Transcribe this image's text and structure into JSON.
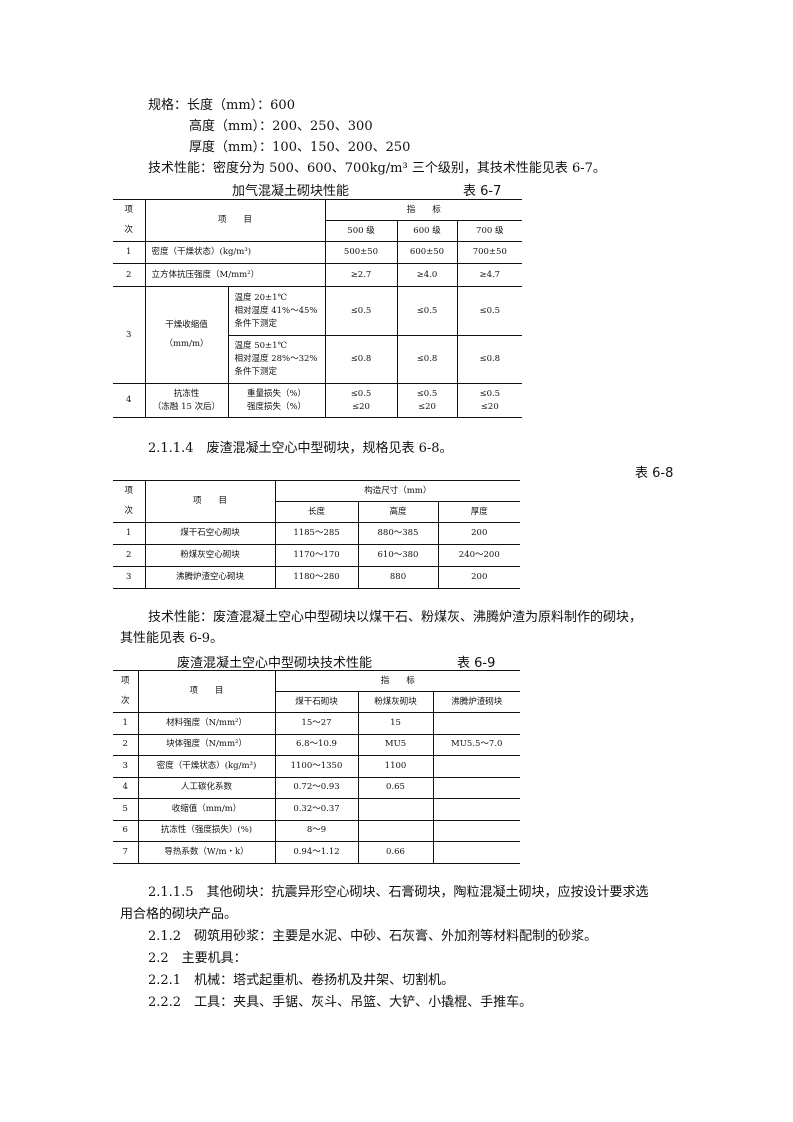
{
  "intro": {
    "spec_label": "规格：长度（mm）：600",
    "height": "高度（mm）：200、250、300",
    "thickness": "厚度（mm）：100、150、200、250",
    "tech": "技术性能：密度分为 500、600、700kg/m³ 三个级别，其技术性能见表 6-7。"
  },
  "table67": {
    "title": "加气混凝土砌块性能",
    "number": "表 6-7",
    "h_no1": "项",
    "h_no2": "次",
    "h_item": "项　　目",
    "h_index": "指　　标",
    "cols": [
      "500 级",
      "600 级",
      "700 级"
    ],
    "r1": {
      "no": "1",
      "item": "密度（干燥状态）(kg/m³)",
      "v": [
        "500±50",
        "600±50",
        "700±50"
      ]
    },
    "r2": {
      "no": "2",
      "item": "立方体抗压强度（M/mm²）",
      "v": [
        "≥2.7",
        "≥4.0",
        "≥4.7"
      ]
    },
    "r3": {
      "no": "3",
      "item1": "干燥收缩值",
      "item2": "（mm/m）",
      "a": {
        "c1": "温度 20±1℃",
        "c2": "相对湿度 41%～45%",
        "c3": "条件下测定",
        "v": [
          "≤0.5",
          "≤0.5",
          "≤0.5"
        ]
      },
      "b": {
        "c1": "温度 50±1℃",
        "c2": "相对湿度 28%～32%",
        "c3": "条件下测定",
        "v": [
          "≤0.8",
          "≤0.8",
          "≤0.8"
        ]
      }
    },
    "r4": {
      "no": "4",
      "item1": "抗冻性",
      "item2": "（冻融 15 次后）",
      "sub1": "重量损失（%）",
      "sub2": "强度损失（%）",
      "v1": [
        "≤0.5",
        "≤0.5",
        "≤0.5"
      ],
      "v2": [
        "≤20",
        "≤20",
        "≤20"
      ]
    }
  },
  "para1": "2.1.1.4　废渣混凝土空心中型砌块，规格见表 6-8。",
  "table68": {
    "number": "表 6-8",
    "h_no1": "项",
    "h_no2": "次",
    "h_item": "项　　目",
    "h_dim": "构造尺寸（mm）",
    "cols": [
      "长度",
      "高度",
      "厚度"
    ],
    "rows": [
      {
        "no": "1",
        "item": "煤干石空心砌块",
        "v": [
          "1185～285",
          "880～385",
          "200"
        ]
      },
      {
        "no": "2",
        "item": "粉煤灰空心砌块",
        "v": [
          "1170～170",
          "610～380",
          "240～200"
        ]
      },
      {
        "no": "3",
        "item": "沸腾炉渣空心砌块",
        "v": [
          "1180～280",
          "880",
          "200"
        ]
      }
    ]
  },
  "para2a": "技术性能：废渣混凝土空心中型砌块以煤干石、粉煤灰、沸腾炉渣为原料制作的砌块，",
  "para2b": "其性能见表 6-9。",
  "table69": {
    "title": "废渣混凝土空心中型砌块技术性能",
    "number": "表 6-9",
    "h_no1": "项",
    "h_no2": "次",
    "h_item": "项　　目",
    "h_index": "指　　标",
    "cols": [
      "煤干石砌块",
      "粉煤灰砌块",
      "沸腾炉渣砌块"
    ],
    "rows": [
      {
        "no": "1",
        "item": "材料强度（N/mm²）",
        "v": [
          "15～27",
          "15",
          ""
        ]
      },
      {
        "no": "2",
        "item": "块体强度（N/mm²）",
        "v": [
          "6.8～10.9",
          "MU5",
          "MU5.5～7.0"
        ]
      },
      {
        "no": "3",
        "item": "密度（干燥状态）(kg/m³)",
        "v": [
          "1100～1350",
          "1100",
          ""
        ]
      },
      {
        "no": "4",
        "item": "人工碳化系数",
        "v": [
          "0.72～0.93",
          "0.65",
          ""
        ]
      },
      {
        "no": "5",
        "item": "收缩值（mm/m）",
        "v": [
          "0.32～0.37",
          "",
          ""
        ]
      },
      {
        "no": "6",
        "item": "抗冻性（强度损失）(%)",
        "v": [
          "8～9",
          "",
          ""
        ]
      },
      {
        "no": "7",
        "item": "导热系数（W/m・k）",
        "v": [
          "0.94～1.12",
          "0.66",
          ""
        ]
      }
    ]
  },
  "para3a": "2.1.1.5　其他砌块：抗震异形空心砌块、石膏砌块，陶粒混凝土砌块，应按设计要求选",
  "para3b": "用合格的砌块产品。",
  "para4": "2.1.2　砌筑用砂浆：主要是水泥、中砂、石灰膏、外加剂等材料配制的砂浆。",
  "para5": "2.2　主要机具：",
  "para6": "2.2.1　机械：塔式起重机、卷扬机及井架、切割机。",
  "para7": "2.2.2　工具：夹具、手锯、灰斗、吊篮、大铲、小撬棍、手推车。"
}
